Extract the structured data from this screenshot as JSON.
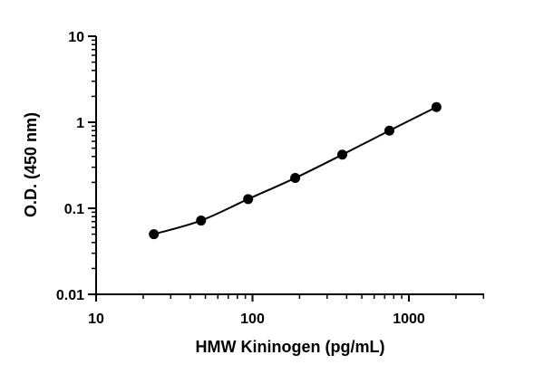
{
  "chart_data": {
    "type": "scatter",
    "xlabel": "HMW Kininogen  (pg/mL)",
    "ylabel": "O.D. (450 nm)",
    "x_scale": "log",
    "y_scale": "log",
    "xlim": [
      10,
      3000
    ],
    "ylim": [
      0.01,
      10
    ],
    "x_ticks": [
      {
        "value": 10,
        "label": "10"
      },
      {
        "value": 100,
        "label": "100"
      },
      {
        "value": 1000,
        "label": "1000"
      }
    ],
    "y_ticks": [
      {
        "value": 0.01,
        "label": "0.01"
      },
      {
        "value": 0.1,
        "label": "0.1"
      },
      {
        "value": 1,
        "label": "1"
      },
      {
        "value": 10,
        "label": "10"
      }
    ],
    "grid": false,
    "legend": "none",
    "fit_curve": true,
    "series": [
      {
        "x": [
          23.4,
          46.9,
          93.8,
          187.5,
          375,
          750,
          1500
        ],
        "y": [
          0.05,
          0.072,
          0.128,
          0.225,
          0.42,
          0.8,
          1.5
        ]
      }
    ],
    "colors": {
      "marker": "#000000",
      "line": "#000000",
      "axis": "#000000"
    }
  }
}
